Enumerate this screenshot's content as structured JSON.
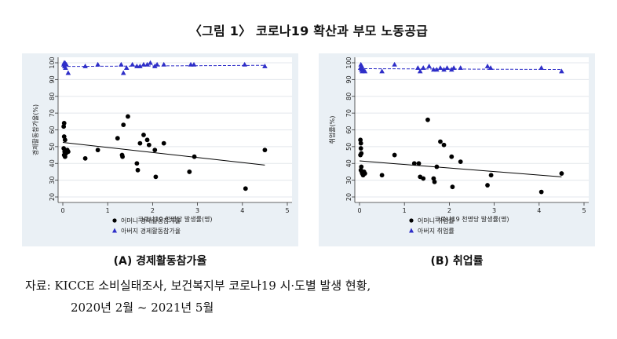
{
  "figure": {
    "title": "〈그림 1〉 코로나19 확산과 부모 노동공급",
    "source_label": "자료:",
    "source_line1": "KICCE 소비실태조사, 보건복지부 코로나19 시·도별 발생 현황,",
    "source_line2": "2020년 2월 ~ 2021년 5월"
  },
  "chart_data": [
    {
      "type": "scatter",
      "caption": "(A) 경제활동참가율",
      "xlabel": "코로나19 천명당 발생률(명)",
      "ylabel": "경제활동참가율(%)",
      "xlim": [
        0,
        5
      ],
      "ylim": [
        20,
        100
      ],
      "x_ticks": [
        0,
        1,
        2,
        3,
        4,
        5
      ],
      "y_ticks": [
        20,
        30,
        40,
        50,
        60,
        70,
        80,
        90,
        100
      ],
      "grid": "horizontal",
      "legend_position": "bottom",
      "series": [
        {
          "name": "어머니 경제활동참가율",
          "color": "#000000",
          "marker": "circle",
          "points": [
            [
              0.02,
              62
            ],
            [
              0.03,
              64
            ],
            [
              0.03,
              56
            ],
            [
              0.05,
              54
            ],
            [
              0.02,
              49
            ],
            [
              0.04,
              47
            ],
            [
              0.03,
              45
            ],
            [
              0.05,
              44
            ],
            [
              0.07,
              46
            ],
            [
              0.1,
              48
            ],
            [
              0.12,
              47
            ],
            [
              0.5,
              43
            ],
            [
              0.78,
              48
            ],
            [
              1.22,
              55
            ],
            [
              1.32,
              45
            ],
            [
              1.33,
              44
            ],
            [
              1.35,
              63
            ],
            [
              1.45,
              68
            ],
            [
              1.65,
              40
            ],
            [
              1.67,
              36
            ],
            [
              1.72,
              52
            ],
            [
              1.8,
              57
            ],
            [
              1.88,
              54
            ],
            [
              1.92,
              51
            ],
            [
              2.05,
              48
            ],
            [
              2.07,
              32
            ],
            [
              2.25,
              52
            ],
            [
              2.82,
              35
            ],
            [
              2.93,
              44
            ],
            [
              4.07,
              25
            ],
            [
              4.5,
              48
            ]
          ],
          "trend": [
            [
              0,
              52.5
            ],
            [
              4.5,
              39
            ]
          ]
        },
        {
          "name": "아버지 경제활동참가율",
          "color": "#2e2ec8",
          "marker": "triangle",
          "points": [
            [
              0.02,
              99
            ],
            [
              0.03,
              100
            ],
            [
              0.04,
              98
            ],
            [
              0.05,
              100
            ],
            [
              0.06,
              97
            ],
            [
              0.08,
              99
            ],
            [
              0.12,
              94
            ],
            [
              0.5,
              98
            ],
            [
              0.78,
              99
            ],
            [
              1.3,
              99
            ],
            [
              1.35,
              94
            ],
            [
              1.42,
              97
            ],
            [
              1.55,
              99
            ],
            [
              1.65,
              98
            ],
            [
              1.72,
              98
            ],
            [
              1.8,
              99
            ],
            [
              1.88,
              99
            ],
            [
              1.95,
              100
            ],
            [
              2.05,
              98
            ],
            [
              2.1,
              99
            ],
            [
              2.25,
              99
            ],
            [
              2.85,
              99
            ],
            [
              2.92,
              99
            ],
            [
              4.05,
              99
            ],
            [
              4.5,
              98
            ]
          ],
          "trend": [
            [
              0,
              97.8
            ],
            [
              4.5,
              98.5
            ]
          ]
        }
      ]
    },
    {
      "type": "scatter",
      "caption": "(B) 취업률",
      "xlabel": "코로나19 천명당 발생률(명)",
      "ylabel": "취업률(%)",
      "xlim": [
        0,
        5
      ],
      "ylim": [
        20,
        100
      ],
      "x_ticks": [
        0,
        1,
        2,
        3,
        4,
        5
      ],
      "y_ticks": [
        20,
        30,
        40,
        50,
        60,
        70,
        80,
        90,
        100
      ],
      "grid": "horizontal",
      "legend_position": "bottom",
      "series": [
        {
          "name": "어머니 취업률",
          "color": "#000000",
          "marker": "circle",
          "points": [
            [
              0.02,
              54
            ],
            [
              0.03,
              52
            ],
            [
              0.03,
              49
            ],
            [
              0.04,
              46
            ],
            [
              0.02,
              45
            ],
            [
              0.04,
              38
            ],
            [
              0.03,
              36
            ],
            [
              0.05,
              35
            ],
            [
              0.06,
              34
            ],
            [
              0.08,
              33
            ],
            [
              0.1,
              35
            ],
            [
              0.12,
              34
            ],
            [
              0.5,
              33
            ],
            [
              0.78,
              45
            ],
            [
              1.22,
              40
            ],
            [
              1.32,
              40
            ],
            [
              1.35,
              32
            ],
            [
              1.42,
              31
            ],
            [
              1.52,
              66
            ],
            [
              1.65,
              31
            ],
            [
              1.67,
              29
            ],
            [
              1.72,
              38
            ],
            [
              1.8,
              53
            ],
            [
              1.88,
              51
            ],
            [
              2.05,
              44
            ],
            [
              2.07,
              26
            ],
            [
              2.25,
              41
            ],
            [
              2.85,
              27
            ],
            [
              2.93,
              33
            ],
            [
              4.05,
              23
            ],
            [
              4.5,
              34
            ]
          ],
          "trend": [
            [
              0,
              41.5
            ],
            [
              4.5,
              32
            ]
          ]
        },
        {
          "name": "아버지 취업률",
          "color": "#2e2ec8",
          "marker": "triangle",
          "points": [
            [
              0.02,
              97
            ],
            [
              0.03,
              99
            ],
            [
              0.04,
              96
            ],
            [
              0.05,
              98
            ],
            [
              0.06,
              95
            ],
            [
              0.08,
              96
            ],
            [
              0.12,
              95
            ],
            [
              0.5,
              95
            ],
            [
              0.78,
              99
            ],
            [
              1.3,
              97
            ],
            [
              1.35,
              95
            ],
            [
              1.42,
              97
            ],
            [
              1.55,
              98
            ],
            [
              1.65,
              96
            ],
            [
              1.72,
              96
            ],
            [
              1.8,
              97
            ],
            [
              1.88,
              96
            ],
            [
              1.95,
              97
            ],
            [
              2.05,
              96
            ],
            [
              2.1,
              97
            ],
            [
              2.25,
              97
            ],
            [
              2.85,
              98
            ],
            [
              2.92,
              97
            ],
            [
              4.05,
              97
            ],
            [
              4.5,
              95
            ]
          ],
          "trend": [
            [
              0,
              96.5
            ],
            [
              4.5,
              96
            ]
          ]
        }
      ]
    }
  ]
}
